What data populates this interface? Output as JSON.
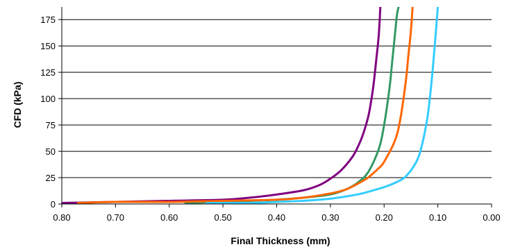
{
  "chart_data": {
    "type": "line",
    "title": "",
    "xlabel": "Final Thickness (mm)",
    "ylabel": "CFD (kPa)",
    "xlim": [
      0.8,
      0.0
    ],
    "x_reversed": true,
    "ylim": [
      0,
      187
    ],
    "x_ticks": [
      "0.80",
      "0.70",
      "0.60",
      "0.50",
      "0.40",
      "0.30",
      "0.20",
      "0.10",
      "0.00"
    ],
    "y_ticks": [
      "0",
      "25",
      "50",
      "75",
      "100",
      "125",
      "150",
      "175"
    ],
    "grid": "horizontal",
    "legend": "none",
    "series": [
      {
        "color": "#800080",
        "x": [
          0.8,
          0.7,
          0.6,
          0.5,
          0.45,
          0.4,
          0.35,
          0.32,
          0.3,
          0.28,
          0.26,
          0.25,
          0.24,
          0.23,
          0.225,
          0.22,
          0.215,
          0.21,
          0.207
        ],
        "y": [
          1,
          2,
          3,
          4,
          6,
          9,
          13,
          18,
          24,
          32,
          44,
          53,
          65,
          82,
          95,
          112,
          135,
          160,
          187
        ]
      },
      {
        "color": "#339966",
        "x": [
          0.57,
          0.5,
          0.45,
          0.4,
          0.35,
          0.3,
          0.27,
          0.25,
          0.23,
          0.21,
          0.2,
          0.19,
          0.185,
          0.18,
          0.176,
          0.173
        ],
        "y": [
          1,
          2,
          3,
          4,
          6,
          9,
          14,
          20,
          30,
          52,
          75,
          110,
          135,
          160,
          180,
          187
        ]
      },
      {
        "color": "#FF6600",
        "x": [
          0.77,
          0.7,
          0.6,
          0.5,
          0.4,
          0.35,
          0.3,
          0.27,
          0.25,
          0.23,
          0.21,
          0.2,
          0.18,
          0.17,
          0.16,
          0.155,
          0.15,
          0.147
        ],
        "y": [
          1,
          2,
          2,
          3,
          4,
          6,
          10,
          14,
          19,
          25,
          34,
          40,
          60,
          80,
          115,
          140,
          165,
          187
        ]
      },
      {
        "color": "#33CCFF",
        "x": [
          0.53,
          0.45,
          0.4,
          0.35,
          0.3,
          0.25,
          0.22,
          0.2,
          0.18,
          0.16,
          0.14,
          0.13,
          0.12,
          0.115,
          0.11,
          0.105,
          0.1
        ],
        "y": [
          1,
          1,
          2,
          3,
          5,
          9,
          13,
          16,
          20,
          26,
          40,
          55,
          80,
          100,
          125,
          155,
          187
        ]
      }
    ]
  }
}
